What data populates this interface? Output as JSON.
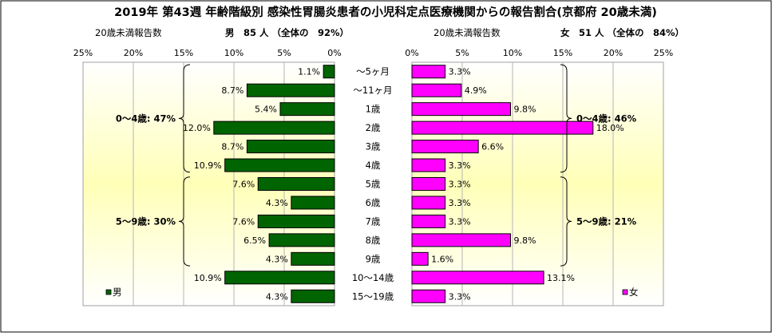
{
  "chart_data": {
    "type": "bar",
    "title": "2019年 第43週 年齢階級別 感染性胃腸炎患者の小児科定点医療機関からの報告割合(京都府 20歳未満)",
    "categories": [
      "～5ヶ月",
      "～11ヶ月",
      "1歳",
      "2歳",
      "3歳",
      "4歳",
      "5歳",
      "6歳",
      "7歳",
      "8歳",
      "9歳",
      "10～14歳",
      "15～19歳"
    ],
    "xlim": [
      0,
      25
    ],
    "xticks": [
      "0%",
      "5%",
      "10%",
      "15%",
      "20%",
      "25%"
    ],
    "series": [
      {
        "name": "男",
        "side": "left",
        "color": "#006400",
        "header_left": "20歳未満報告数",
        "header_right": "男　85 人 （全体の　92%）",
        "values": [
          1.1,
          8.7,
          5.4,
          12.0,
          8.7,
          10.9,
          7.6,
          4.3,
          7.6,
          6.5,
          4.3,
          10.9,
          4.3
        ],
        "value_labels": [
          "1.1%",
          "8.7%",
          "5.4%",
          "12.0%",
          "8.7%",
          "10.9%",
          "7.6%",
          "4.3%",
          "7.6%",
          "6.5%",
          "4.3%",
          "10.9%",
          "4.3%"
        ],
        "legend": "男",
        "groups": [
          {
            "label": "0～4歳: 47%",
            "from": 0,
            "to": 5
          },
          {
            "label": "5～9歳: 30%",
            "from": 6,
            "to": 10
          }
        ]
      },
      {
        "name": "女",
        "side": "right",
        "color": "#ff00ff",
        "header_left": "20歳未満報告数",
        "header_right": "女　51 人 （全体の　84%）",
        "values": [
          3.3,
          4.9,
          9.8,
          18.0,
          6.6,
          3.3,
          3.3,
          3.3,
          3.3,
          9.8,
          1.6,
          13.1,
          3.3
        ],
        "value_labels": [
          "3.3%",
          "4.9%",
          "9.8%",
          "18.0%",
          "6.6%",
          "3.3%",
          "3.3%",
          "3.3%",
          "3.3%",
          "9.8%",
          "1.6%",
          "13.1%",
          "3.3%"
        ],
        "legend": "女",
        "groups": [
          {
            "label": "0～4歳: 46%",
            "from": 0,
            "to": 5
          },
          {
            "label": "5～9歳: 21%",
            "from": 6,
            "to": 10
          }
        ]
      }
    ],
    "grid": true
  }
}
